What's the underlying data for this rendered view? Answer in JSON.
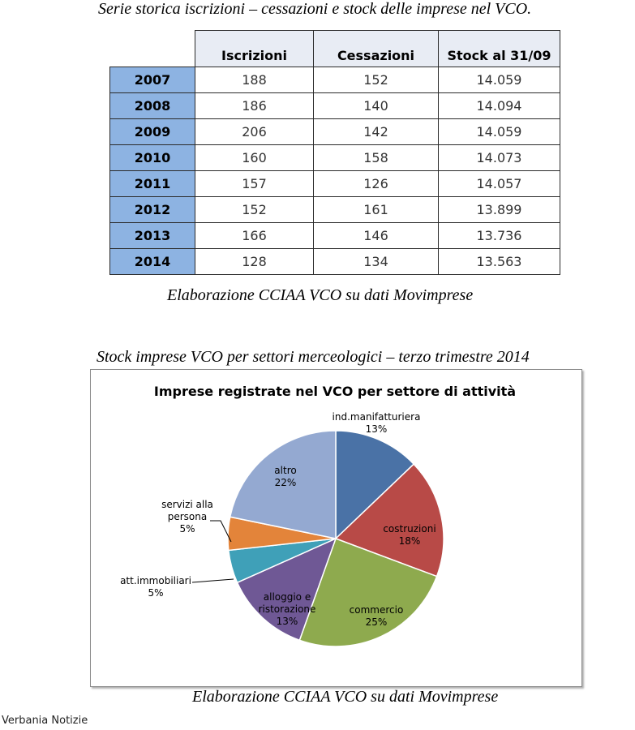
{
  "table_section": {
    "title": "Serie storica iscrizioni – cessazioni e stock delle imprese nel VCO.",
    "headers": [
      "Iscrizioni",
      "Cessazioni",
      "Stock al 31/09"
    ],
    "rows": [
      {
        "year": "2007",
        "iscrizioni": "188",
        "cessazioni": "152",
        "stock": "14.059"
      },
      {
        "year": "2008",
        "iscrizioni": "186",
        "cessazioni": "140",
        "stock": "14.094"
      },
      {
        "year": "2009",
        "iscrizioni": "206",
        "cessazioni": "142",
        "stock": "14.059"
      },
      {
        "year": "2010",
        "iscrizioni": "160",
        "cessazioni": "158",
        "stock": "14.073"
      },
      {
        "year": "2011",
        "iscrizioni": "157",
        "cessazioni": "126",
        "stock": "14.057"
      },
      {
        "year": "2012",
        "iscrizioni": "152",
        "cessazioni": "161",
        "stock": "13.899"
      },
      {
        "year": "2013",
        "iscrizioni": "166",
        "cessazioni": "146",
        "stock": "13.736"
      },
      {
        "year": "2014",
        "iscrizioni": "128",
        "cessazioni": "134",
        "stock": "13.563"
      }
    ],
    "source": "Elaborazione CCIAA VCO su dati Movimprese"
  },
  "chart_section": {
    "caption": "Stock imprese VCO per settori merceologici – terzo trimestre 2014",
    "source": "Elaborazione CCIAA VCO su dati Movimprese"
  },
  "chart_data": {
    "type": "pie",
    "title": "Imprese registrate nel VCO per settore di attività",
    "slices": [
      {
        "label": "ind.manifatturiera",
        "pct_label": "13%",
        "value": 13,
        "color": "#4a72a6"
      },
      {
        "label": "costruzioni",
        "pct_label": "18%",
        "value": 18,
        "color": "#b84a47"
      },
      {
        "label": "commercio",
        "pct_label": "25%",
        "value": 25,
        "color": "#8eaa4e"
      },
      {
        "label": "alloggio e ristorazione",
        "pct_label": "13%",
        "value": 13,
        "color": "#6f5895"
      },
      {
        "label": "att.immobiliari",
        "pct_label": "5%",
        "value": 5,
        "color": "#3fa0b8"
      },
      {
        "label": "servizi alla persona",
        "pct_label": "5%",
        "value": 5,
        "color": "#e3843a"
      },
      {
        "label": "altro",
        "pct_label": "22%",
        "value": 22,
        "color": "#94a9d1"
      }
    ]
  },
  "footer": {
    "credit": "Verbania Notizie"
  }
}
